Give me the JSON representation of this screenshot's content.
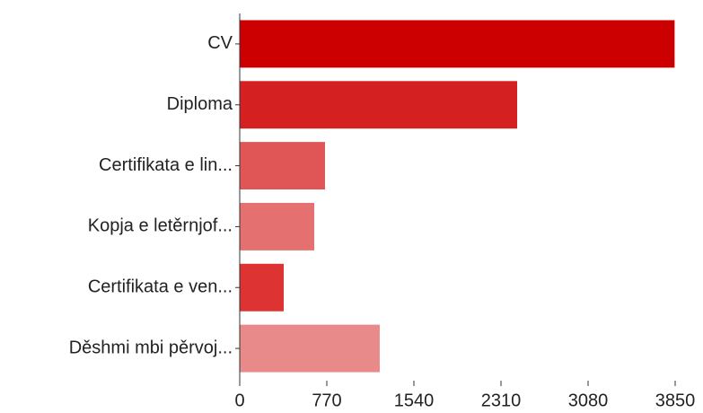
{
  "chart_data": {
    "type": "barh",
    "categories": [
      "CV",
      "Diploma",
      "Certifikata e lin...",
      "Kopja e letěrnjof...",
      "Certifikata e ven...",
      "Děshmi mbi pěrvoj..."
    ],
    "values": [
      3845,
      2453,
      754,
      659,
      389,
      1238
    ],
    "colors": [
      "#cc0000",
      "#d42020",
      "#e05555",
      "#e57070",
      "#dd3333",
      "#e88a8a"
    ],
    "xlim": [
      0,
      3850
    ],
    "xticks": [
      0,
      770,
      1540,
      2310,
      3080,
      3850
    ]
  }
}
